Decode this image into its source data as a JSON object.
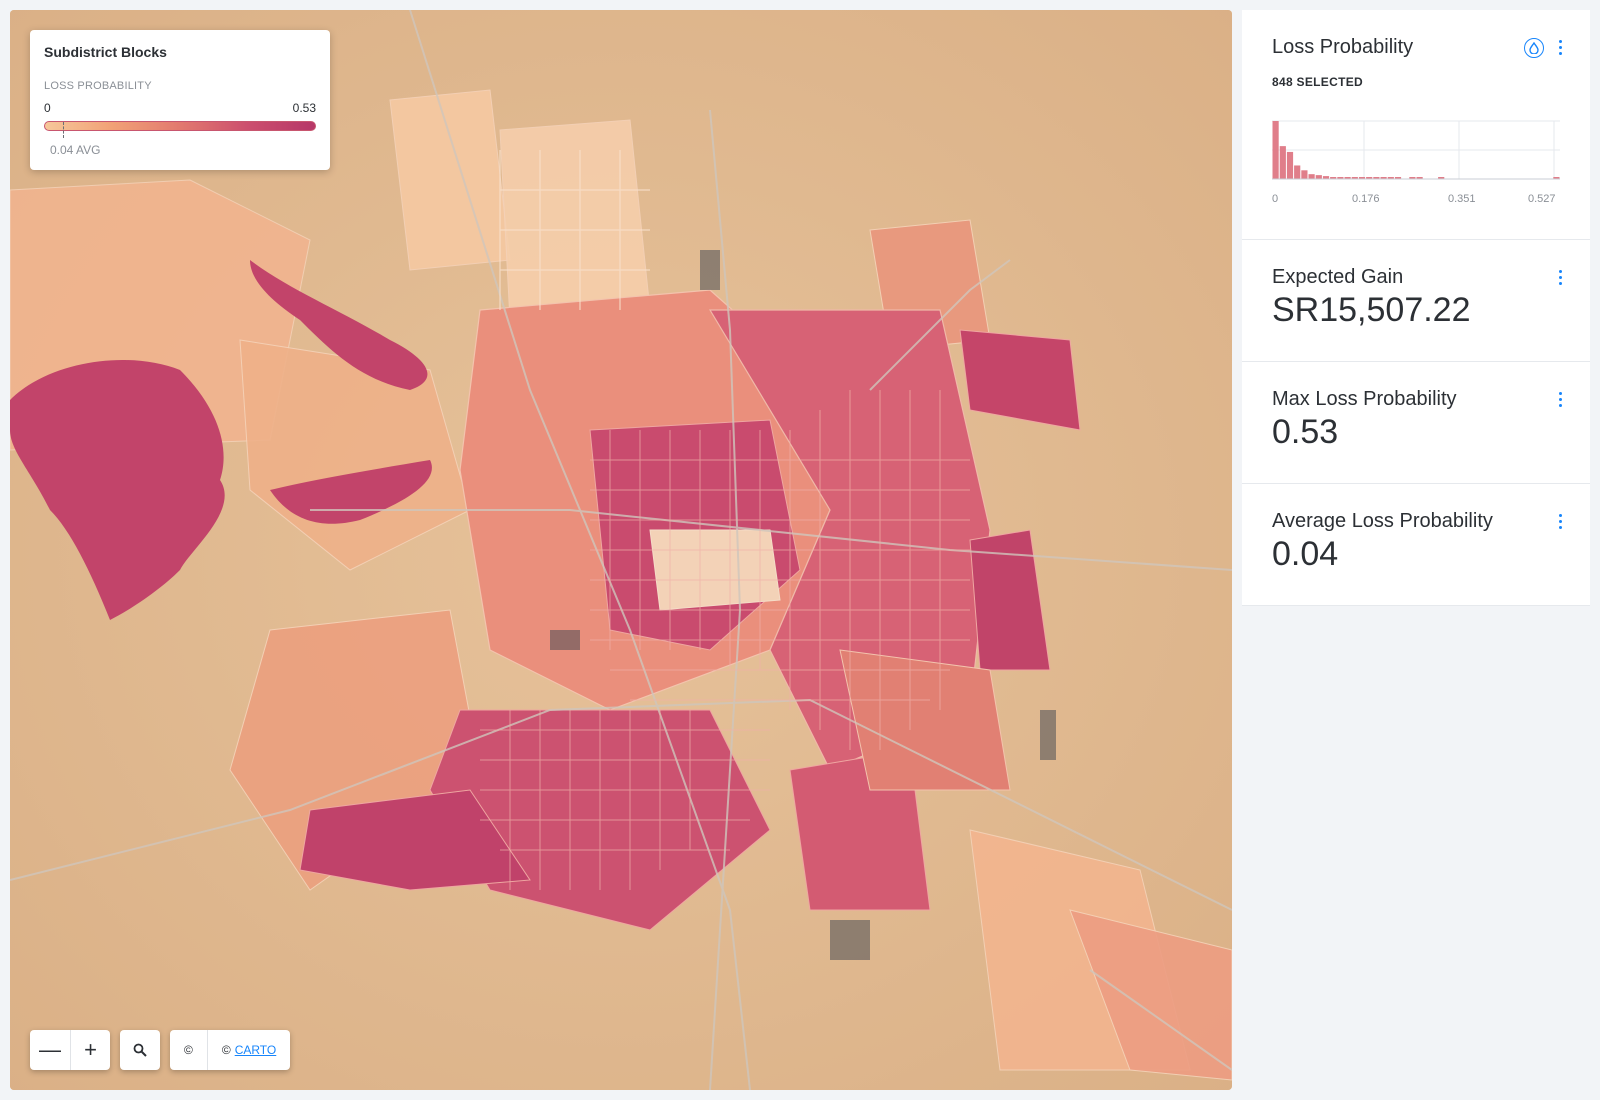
{
  "legend": {
    "title": "Subdistrict Blocks",
    "subtitle": "LOSS PROBABILITY",
    "min": "0",
    "max": "0.53",
    "avg": "0.04 AVG",
    "colors": [
      "#f6c79a",
      "#f1a176",
      "#e2796f",
      "#cc4f6e",
      "#b63768"
    ]
  },
  "map_controls": {
    "zoom_out": "—",
    "zoom_in": "+",
    "search_icon": "search-icon",
    "copyright": "©",
    "carto_prefix": "©",
    "carto_link": "CARTO"
  },
  "widgets": {
    "loss_probability": {
      "title": "Loss Probability",
      "selected": "848 SELECTED",
      "ticks": [
        "0",
        "0.176",
        "0.351",
        "0.527"
      ],
      "accent": "#1785fb",
      "bar_color": "#e07e8a"
    },
    "expected_gain": {
      "title": "Expected Gain",
      "value": "SR15,507.22"
    },
    "max_loss": {
      "title": "Max Loss Probability",
      "value": "0.53"
    },
    "avg_loss": {
      "title": "Average Loss Probability",
      "value": "0.04"
    }
  },
  "chart_data": {
    "type": "bar",
    "title": "Loss Probability",
    "xlim": [
      0,
      0.527
    ],
    "x_ticks": [
      "0",
      "0.176",
      "0.351",
      "0.527"
    ],
    "values": [
      60,
      34,
      28,
      14,
      9,
      5,
      4,
      3,
      2,
      2,
      2,
      1,
      1,
      1,
      1,
      1,
      1,
      1,
      0,
      1,
      1,
      0,
      0,
      1,
      0,
      0,
      0,
      0,
      0,
      0,
      0,
      0,
      0,
      0,
      0,
      0,
      0,
      0,
      0,
      1
    ],
    "grid": true
  }
}
